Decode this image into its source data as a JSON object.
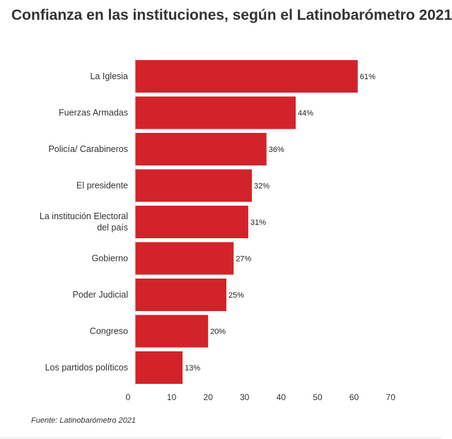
{
  "title": "Confianza en las instituciones, según el Latinobarómetro 2021",
  "source": "Fuente: Latinobarómetro 2021",
  "colors": {
    "bar": "#d2232a",
    "text": "#333333",
    "axis": "#999999"
  },
  "chart_data": {
    "type": "bar",
    "orientation": "horizontal",
    "categories": [
      "La Iglesia",
      "Fuerzas Armadas",
      "Policía/ Carabineros",
      "El presidente",
      "La institución Electoral del país",
      "Gobierno",
      "Poder Judicial",
      "Congreso",
      "Los partidos políticos"
    ],
    "values": [
      61,
      44,
      36,
      32,
      31,
      27,
      25,
      20,
      13
    ],
    "value_labels": [
      "61%",
      "44%",
      "36%",
      "32%",
      "31%",
      "27%",
      "25%",
      "20%",
      "13%"
    ],
    "title": "Confianza en las instituciones, según el Latinobarómetro 2021",
    "xlabel": "",
    "ylabel": "",
    "xlim": [
      0,
      70
    ],
    "xticks": [
      0,
      10,
      20,
      30,
      40,
      50,
      60,
      70
    ],
    "grid": false,
    "legend": "none"
  }
}
